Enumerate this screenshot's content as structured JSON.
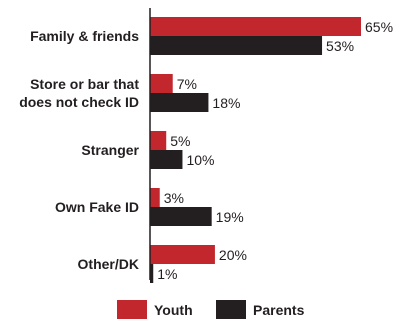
{
  "chart_data": {
    "type": "bar",
    "orientation": "horizontal",
    "categories": [
      [
        "Family & friends"
      ],
      [
        "Store or bar that",
        "does not check ID"
      ],
      [
        "Stranger"
      ],
      [
        "Own Fake ID"
      ],
      [
        "Other/DK"
      ]
    ],
    "series": [
      {
        "name": "Youth",
        "color": "#c1272d",
        "values": [
          65,
          7,
          5,
          3,
          20
        ]
      },
      {
        "name": "Parents",
        "color": "#231f20",
        "values": [
          53,
          18,
          10,
          19,
          1
        ]
      }
    ],
    "value_suffix": "%",
    "xlim": [
      0,
      65
    ],
    "grid": false,
    "legend_position": "bottom"
  }
}
